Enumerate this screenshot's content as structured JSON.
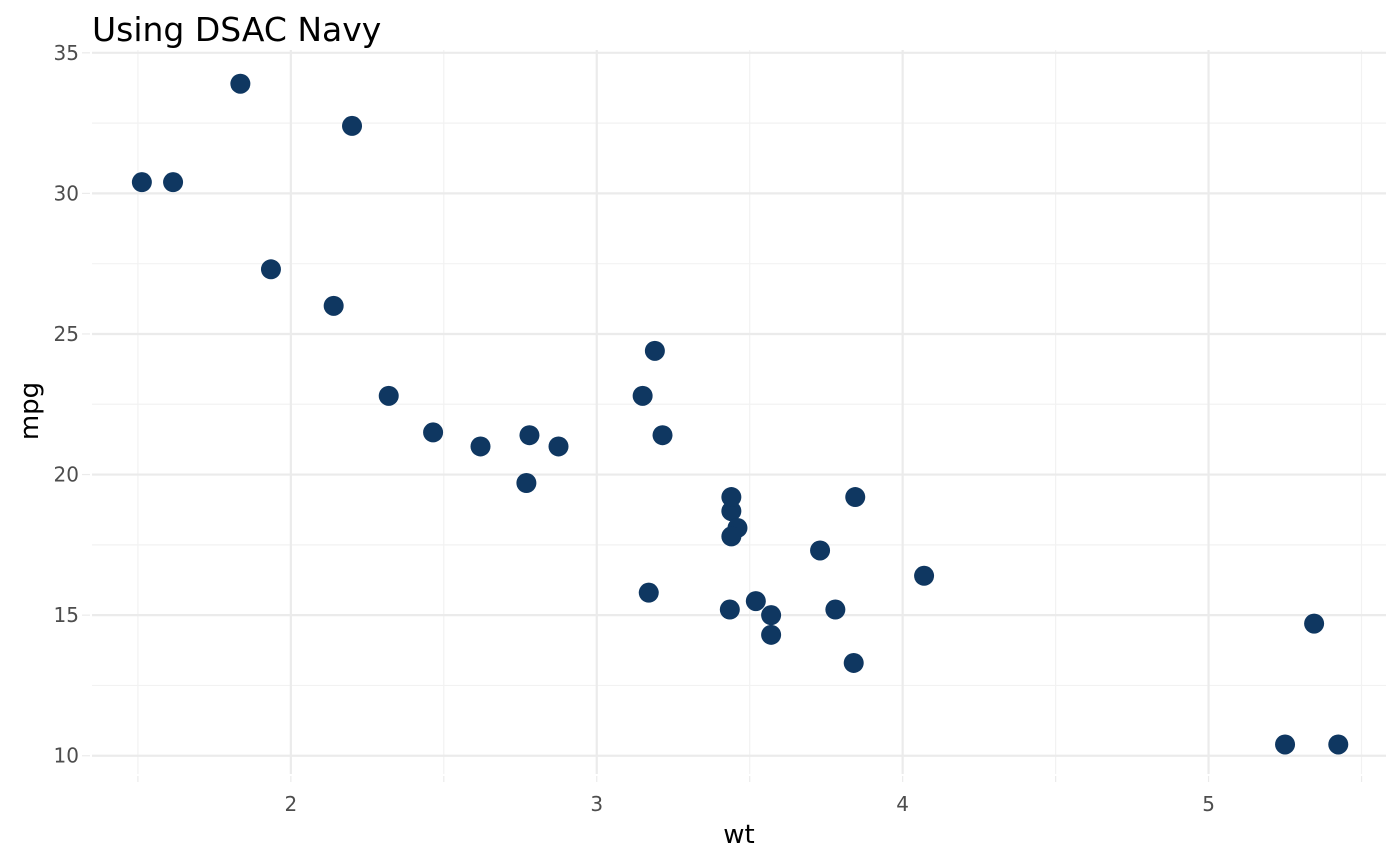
{
  "chart_data": {
    "type": "scatter",
    "title": "Using DSAC Navy",
    "xlabel": "wt",
    "ylabel": "mpg",
    "xlim": [
      1.35,
      5.58
    ],
    "ylim": [
      9.35,
      35.1
    ],
    "x_ticks": [
      2,
      3,
      4,
      5
    ],
    "x_minor_ticks": [
      1.5,
      2.5,
      3.5,
      4.5,
      5.5
    ],
    "y_ticks": [
      10,
      15,
      20,
      25,
      30,
      35
    ],
    "y_minor_ticks": [
      12.5,
      17.5,
      22.5,
      27.5,
      32.5
    ],
    "grid": true,
    "point_color": "#0f3761",
    "points": [
      {
        "x": 2.62,
        "y": 21.0
      },
      {
        "x": 2.875,
        "y": 21.0
      },
      {
        "x": 2.32,
        "y": 22.8
      },
      {
        "x": 3.215,
        "y": 21.4
      },
      {
        "x": 3.44,
        "y": 18.7
      },
      {
        "x": 3.46,
        "y": 18.1
      },
      {
        "x": 3.57,
        "y": 14.3
      },
      {
        "x": 3.19,
        "y": 24.4
      },
      {
        "x": 3.15,
        "y": 22.8
      },
      {
        "x": 3.44,
        "y": 19.2
      },
      {
        "x": 3.44,
        "y": 17.8
      },
      {
        "x": 4.07,
        "y": 16.4
      },
      {
        "x": 3.73,
        "y": 17.3
      },
      {
        "x": 3.78,
        "y": 15.2
      },
      {
        "x": 5.25,
        "y": 10.4
      },
      {
        "x": 5.424,
        "y": 10.4
      },
      {
        "x": 5.345,
        "y": 14.7
      },
      {
        "x": 2.2,
        "y": 32.4
      },
      {
        "x": 1.615,
        "y": 30.4
      },
      {
        "x": 1.835,
        "y": 33.9
      },
      {
        "x": 2.465,
        "y": 21.5
      },
      {
        "x": 3.52,
        "y": 15.5
      },
      {
        "x": 3.435,
        "y": 15.2
      },
      {
        "x": 3.84,
        "y": 13.3
      },
      {
        "x": 3.845,
        "y": 19.2
      },
      {
        "x": 1.935,
        "y": 27.3
      },
      {
        "x": 2.14,
        "y": 26.0
      },
      {
        "x": 1.513,
        "y": 30.4
      },
      {
        "x": 3.17,
        "y": 15.8
      },
      {
        "x": 2.77,
        "y": 19.7
      },
      {
        "x": 3.57,
        "y": 15.0
      },
      {
        "x": 2.78,
        "y": 21.4
      }
    ]
  }
}
